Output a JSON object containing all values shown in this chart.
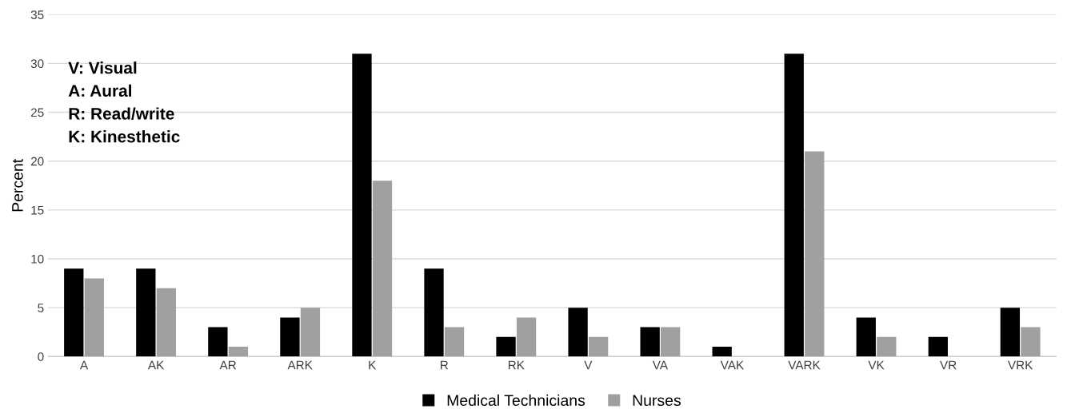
{
  "chart_data": {
    "type": "bar",
    "ylabel": "Percent",
    "categories": [
      "A",
      "AK",
      "AR",
      "ARK",
      "K",
      "R",
      "RK",
      "V",
      "VA",
      "VAK",
      "VARK",
      "VK",
      "VR",
      "VRK"
    ],
    "series": [
      {
        "name": "Medical Technicians",
        "color": "#000000",
        "values": [
          9,
          9,
          3,
          4,
          31,
          9,
          2,
          5,
          3,
          1,
          31,
          4,
          2,
          5
        ]
      },
      {
        "name": "Nurses",
        "color": "#a0a0a0",
        "values": [
          8,
          7,
          1,
          5,
          18,
          3,
          4,
          2,
          3,
          0,
          21,
          2,
          0,
          3
        ]
      }
    ],
    "ylim": [
      0,
      35
    ],
    "yticks": [
      0,
      5,
      10,
      15,
      20,
      25,
      30,
      35
    ],
    "grid": "y",
    "legend": "bottom",
    "annotations": [
      "V: Visual",
      "A: Aural",
      "R: Read/write",
      "K: Kinesthetic"
    ]
  }
}
